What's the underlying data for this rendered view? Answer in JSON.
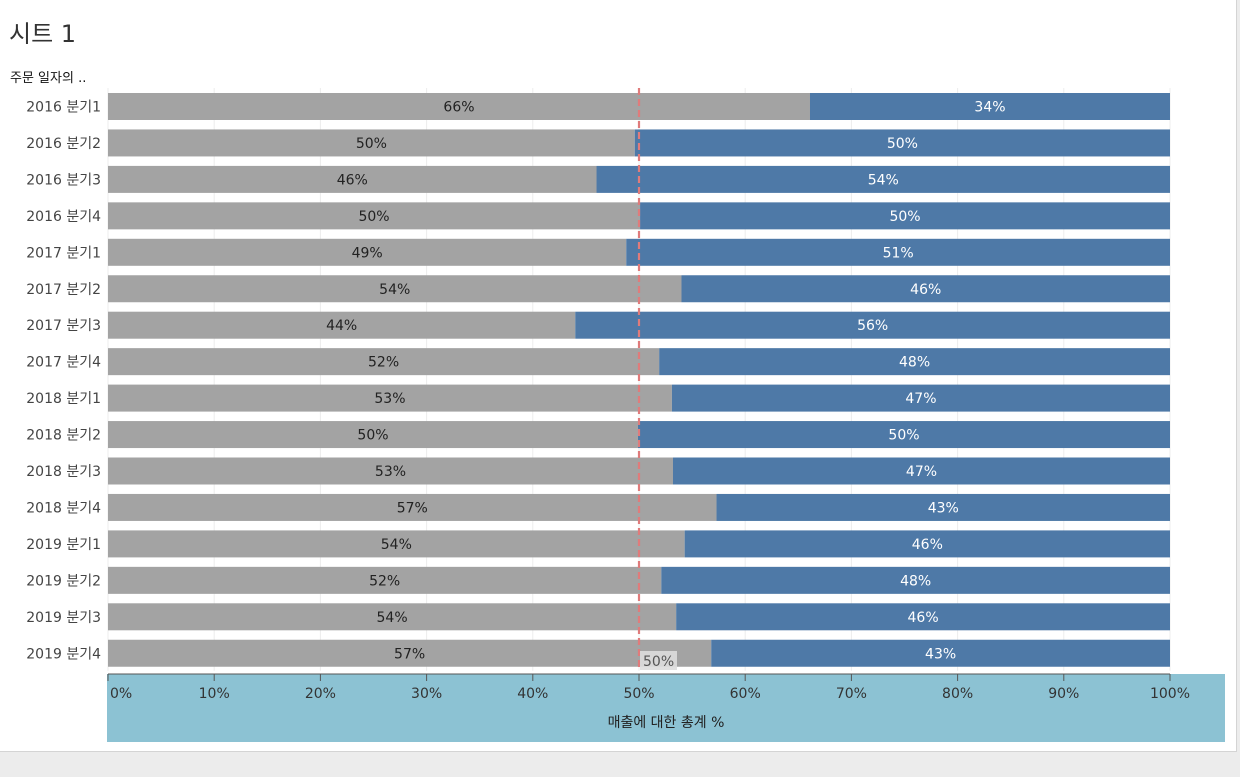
{
  "sheet": {
    "title": "시트 1",
    "row_header": "주문 일자의 .."
  },
  "colors": {
    "series_a": "#a3a3a3",
    "series_b": "#4e79a7",
    "reference_line": "#e07b7b",
    "axis_band": "#8cc2d3"
  },
  "chart_data": {
    "type": "bar",
    "orientation": "horizontal",
    "stacked": "100%",
    "categories": [
      "2016 분기1",
      "2016 분기2",
      "2016 분기3",
      "2016 분기4",
      "2017 분기1",
      "2017 분기2",
      "2017 분기3",
      "2017 분기4",
      "2018 분기1",
      "2018 분기2",
      "2018 분기3",
      "2018 분기4",
      "2019 분기1",
      "2019 분기2",
      "2019 분기3",
      "2019 분기4"
    ],
    "series": [
      {
        "values": [
          66.1,
          49.6,
          46.0,
          50.1,
          48.8,
          54.0,
          44.0,
          51.9,
          53.1,
          49.9,
          53.2,
          57.3,
          54.3,
          52.1,
          53.5,
          56.8
        ],
        "labels": [
          "66%",
          "50%",
          "46%",
          "50%",
          "49%",
          "54%",
          "44%",
          "52%",
          "53%",
          "50%",
          "53%",
          "57%",
          "54%",
          "52%",
          "54%",
          "57%"
        ]
      },
      {
        "values": [
          33.9,
          50.4,
          54.0,
          49.9,
          51.2,
          46.0,
          56.0,
          48.1,
          46.9,
          50.1,
          46.8,
          42.7,
          45.7,
          47.9,
          46.5,
          43.2
        ],
        "labels": [
          "34%",
          "50%",
          "54%",
          "50%",
          "51%",
          "46%",
          "56%",
          "48%",
          "47%",
          "50%",
          "47%",
          "43%",
          "46%",
          "48%",
          "46%",
          "43%"
        ]
      }
    ],
    "xlabel": "매출에 대한 총계 %",
    "xlim": [
      0,
      100
    ],
    "xticks": [
      "0%",
      "10%",
      "20%",
      "30%",
      "40%",
      "50%",
      "60%",
      "70%",
      "80%",
      "90%",
      "100%"
    ],
    "reference_line": {
      "value": 50,
      "label": "50%"
    },
    "grid": true
  }
}
